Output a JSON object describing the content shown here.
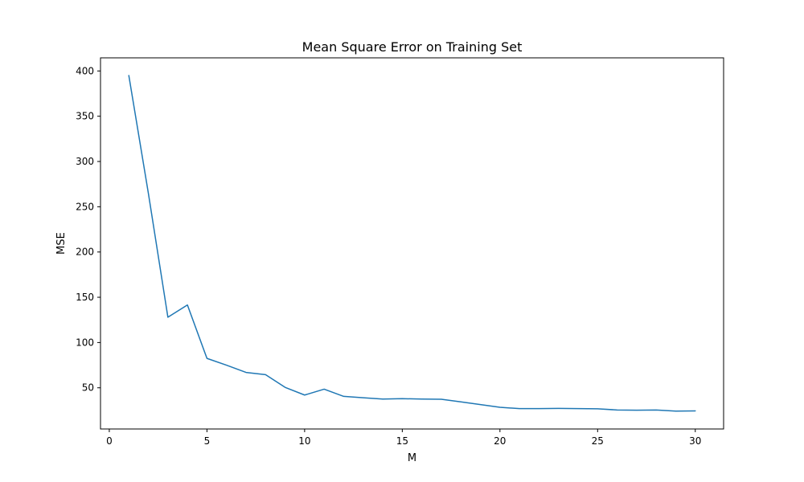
{
  "chart_data": {
    "type": "line",
    "title": "Mean Square Error on Training Set",
    "xlabel": "M",
    "ylabel": "MSE",
    "xlim": [
      -0.45,
      31.45
    ],
    "ylim": [
      4.5,
      414.5
    ],
    "xticks": [
      0,
      5,
      10,
      15,
      20,
      25,
      30
    ],
    "yticks": [
      50,
      100,
      150,
      200,
      250,
      300,
      350,
      400
    ],
    "grid": false,
    "series": [
      {
        "color": "#1f77b4",
        "x": [
          1,
          2,
          3,
          4,
          5,
          6,
          7,
          8,
          9,
          10,
          11,
          12,
          13,
          14,
          15,
          16,
          17,
          18,
          19,
          20,
          21,
          22,
          23,
          24,
          25,
          26,
          27,
          28,
          29,
          30
        ],
        "y": [
          395,
          265,
          128,
          141.5,
          82.5,
          75,
          67,
          64.5,
          50.5,
          42,
          48.5,
          40.5,
          39,
          37.5,
          38,
          37.5,
          37.3,
          34.5,
          31.5,
          28.5,
          27,
          27,
          27.2,
          27,
          26.8,
          25.5,
          25.2,
          25.5,
          24.3,
          24.5
        ]
      }
    ]
  }
}
